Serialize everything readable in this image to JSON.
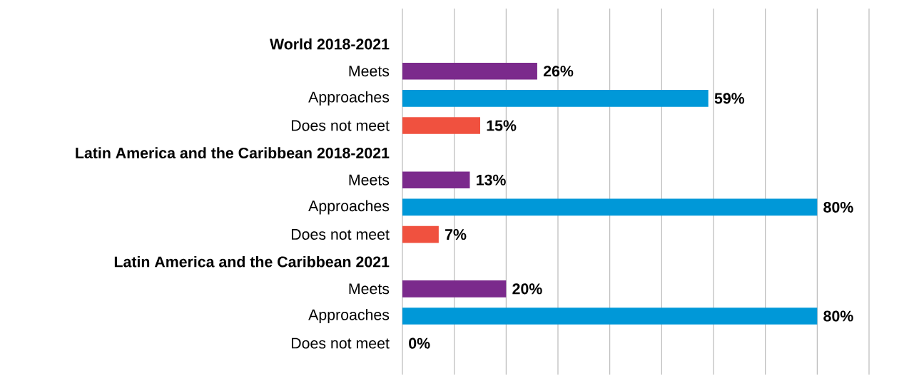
{
  "chart_data": {
    "type": "bar",
    "orientation": "horizontal",
    "categories": [
      "World 2018-2021",
      "Meets",
      "Approaches",
      "Does not meet",
      "Latin America and the Caribbean 2018-2021",
      "Meets",
      "Approaches",
      "Does not meet",
      "Latin America and the Caribbean 2021",
      "Meets",
      "Approaches",
      "Does not meet"
    ],
    "values": [
      null,
      26,
      59,
      15,
      null,
      13,
      80,
      7,
      null,
      20,
      80,
      0
    ],
    "colors": [
      null,
      "#7b2a8c",
      "#0098d8",
      "#f0513f",
      null,
      "#7b2a8c",
      "#0098d8",
      "#f0513f",
      null,
      "#7b2a8c",
      "#0098d8",
      "#f0513f"
    ],
    "value_labels": [
      null,
      "26%",
      "59%",
      "15%",
      null,
      "13%",
      "80%",
      "7%",
      null,
      "20%",
      "80%",
      "0%"
    ],
    "xlim": [
      0,
      90
    ],
    "xticks": [
      {
        "value": 0,
        "label": null
      },
      {
        "value": 10,
        "label": null
      },
      {
        "value": 20,
        "label": null
      },
      {
        "value": 30,
        "label": null
      },
      {
        "value": 40,
        "label": null
      },
      {
        "value": 50,
        "label": null
      },
      {
        "value": 60,
        "label": null
      },
      {
        "value": 70,
        "label": null
      },
      {
        "value": 80,
        "label": null
      },
      {
        "value": 90,
        "label": null
      }
    ],
    "grid": "x",
    "tick_labels": "y"
  }
}
